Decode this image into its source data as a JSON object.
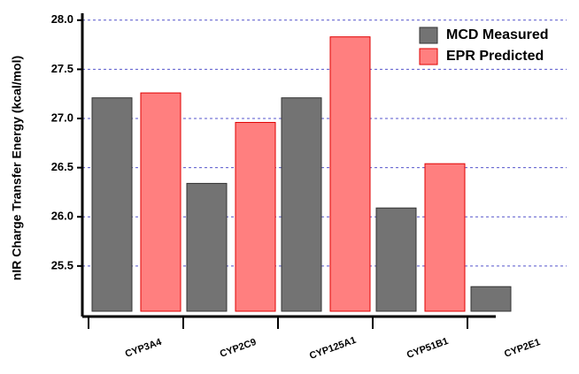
{
  "chart_data": {
    "type": "bar",
    "y_label": "nIR Charge Transfer Energy (kcal/mol)",
    "categories": [
      "CYP3A4",
      "CYP2C9",
      "CYP125A1",
      "CYP51B1",
      "CYP2E1"
    ],
    "series": [
      {
        "name": "MCD Measured",
        "color": "#737373",
        "values": [
          27.21,
          26.34,
          27.21,
          26.09,
          25.29
        ]
      },
      {
        "name": "EPR Predicted",
        "color": "#ff7f7f",
        "values": [
          27.26,
          26.96,
          27.83,
          26.54,
          null
        ]
      }
    ],
    "ylim": [
      25.04,
      28.07
    ],
    "yticks": [
      {
        "value": 25.5,
        "label": "25.5"
      },
      {
        "value": 26,
        "label": "26.0"
      },
      {
        "value": 26.5,
        "label": "26.5"
      },
      {
        "value": 27,
        "label": "27.0"
      },
      {
        "value": 27.5,
        "label": "27.5"
      },
      {
        "value": 28,
        "label": "28.0"
      }
    ],
    "grid": true,
    "legend": "upper right"
  }
}
